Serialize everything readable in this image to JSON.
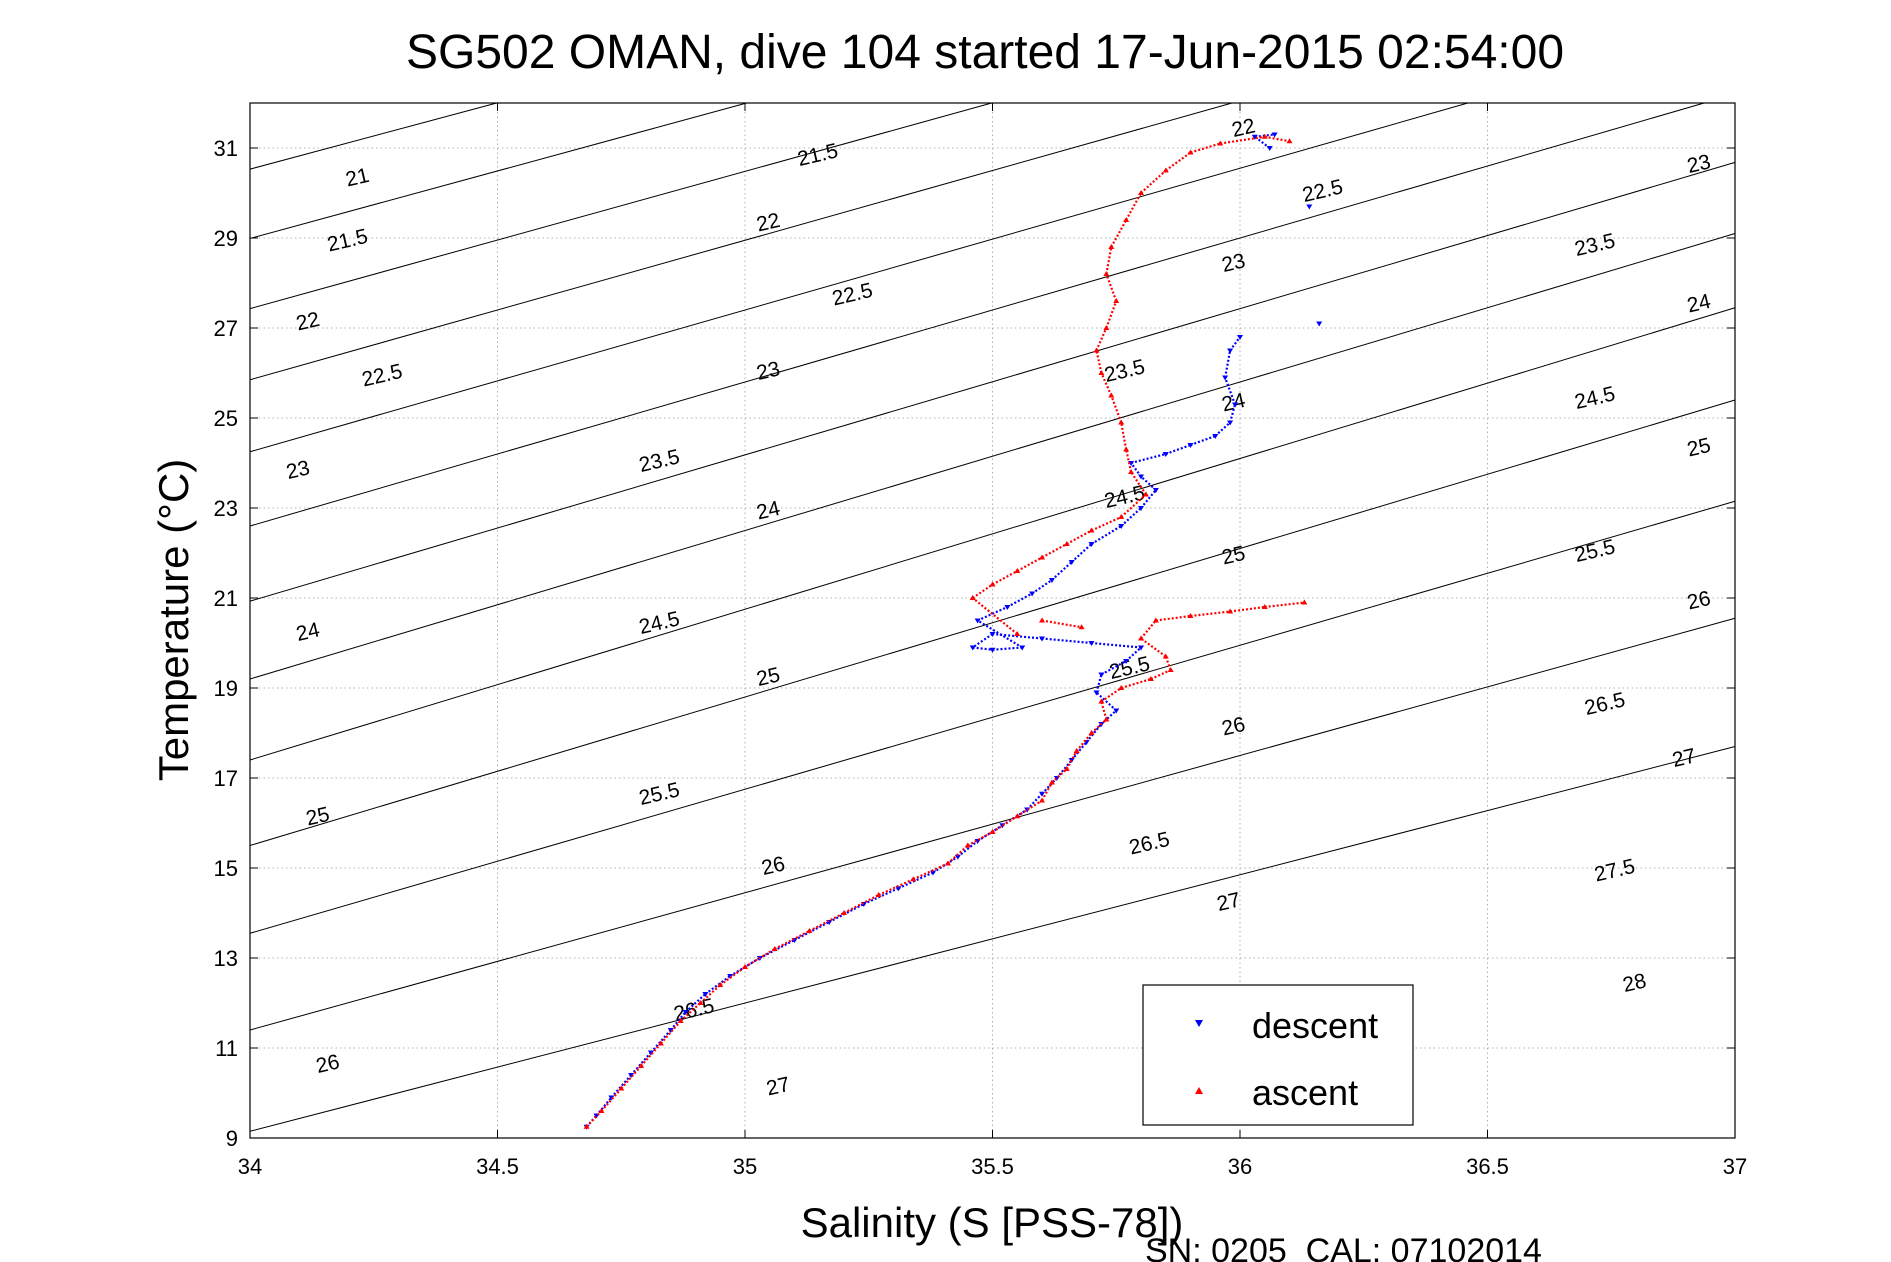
{
  "chart_data": {
    "type": "scatter",
    "title": "SG502 OMAN, dive 104 started 17-Jun-2015 02:54:00",
    "xlabel": "Salinity (S [PSS-78])",
    "ylabel": "Temperature (°C)",
    "xlim": [
      34,
      37
    ],
    "ylim": [
      9,
      32
    ],
    "xticks": [
      "34",
      "34.5",
      "35",
      "35.5",
      "36",
      "36.5",
      "37"
    ],
    "yticks": [
      "9",
      "11",
      "13",
      "15",
      "17",
      "19",
      "21",
      "23",
      "25",
      "27",
      "29",
      "31"
    ],
    "grid": true,
    "legend_position": "bottom-right",
    "footer": "SN: 0205  CAL: 07102014",
    "density_contours": [
      {
        "level": "21",
        "t_at_s34": 33.56,
        "slope": 2.85
      },
      {
        "level": "21.5",
        "t_at_s34": 32.05,
        "slope": 2.9
      },
      {
        "level": "22",
        "t_at_s34": 30.53,
        "slope": 2.95
      },
      {
        "level": "22.5",
        "t_at_s34": 28.99,
        "slope": 3.0
      },
      {
        "level": "23",
        "t_at_s34": 27.43,
        "slope": 3.05
      },
      {
        "level": "23.5",
        "t_at_s34": 25.85,
        "slope": 3.1
      },
      {
        "level": "24",
        "t_at_s34": 24.25,
        "slope": 3.15
      },
      {
        "level": "24.5",
        "t_at_s34": 22.6,
        "slope": 3.2
      },
      {
        "level": "25",
        "t_at_s34": 20.93,
        "slope": 3.25
      },
      {
        "level": "25.5",
        "t_at_s34": 19.2,
        "slope": 3.3
      },
      {
        "level": "26",
        "t_at_s34": 17.4,
        "slope": 3.35
      },
      {
        "level": "26.5",
        "t_at_s34": 15.5,
        "slope": 3.3
      },
      {
        "level": "27",
        "t_at_s34": 13.55,
        "slope": 3.2
      },
      {
        "level": "27.5",
        "t_at_s34": 11.4,
        "slope": 3.05
      },
      {
        "level": "28",
        "t_at_s34": 9.15,
        "slope": 2.85
      }
    ],
    "contour_labels": [
      {
        "text": "21",
        "s": 34.22,
        "t": 30.2
      },
      {
        "text": "21.5",
        "s": 34.2,
        "t": 28.8
      },
      {
        "text": "22",
        "s": 34.12,
        "t": 27.0
      },
      {
        "text": "22.5",
        "s": 34.27,
        "t": 25.8
      },
      {
        "text": "23",
        "s": 34.1,
        "t": 23.7
      },
      {
        "text": "24",
        "s": 34.12,
        "t": 20.1
      },
      {
        "text": "25",
        "s": 34.14,
        "t": 16.0
      },
      {
        "text": "26",
        "s": 34.16,
        "t": 10.5
      },
      {
        "text": "21.5",
        "s": 35.15,
        "t": 30.7
      },
      {
        "text": "22",
        "s": 35.05,
        "t": 29.2
      },
      {
        "text": "22.5",
        "s": 35.22,
        "t": 27.6
      },
      {
        "text": "23",
        "s": 35.05,
        "t": 25.9
      },
      {
        "text": "23.5",
        "s": 34.83,
        "t": 23.9
      },
      {
        "text": "24",
        "s": 35.05,
        "t": 22.8
      },
      {
        "text": "24.5",
        "s": 34.83,
        "t": 20.3
      },
      {
        "text": "25",
        "s": 35.05,
        "t": 19.1
      },
      {
        "text": "25.5",
        "s": 34.83,
        "t": 16.5
      },
      {
        "text": "26",
        "s": 35.06,
        "t": 14.9
      },
      {
        "text": "26.5",
        "s": 34.9,
        "t": 11.7
      },
      {
        "text": "27",
        "s": 35.07,
        "t": 10.0
      },
      {
        "text": "22",
        "s": 36.01,
        "t": 31.3
      },
      {
        "text": "22.5",
        "s": 36.17,
        "t": 29.9
      },
      {
        "text": "23",
        "s": 35.99,
        "t": 28.3
      },
      {
        "text": "23.5",
        "s": 35.77,
        "t": 25.9
      },
      {
        "text": "24",
        "s": 35.99,
        "t": 25.2
      },
      {
        "text": "24.5",
        "s": 35.77,
        "t": 23.1
      },
      {
        "text": "25",
        "s": 35.99,
        "t": 21.8
      },
      {
        "text": "25.5",
        "s": 35.78,
        "t": 19.3
      },
      {
        "text": "26",
        "s": 35.99,
        "t": 18.0
      },
      {
        "text": "26.5",
        "s": 35.82,
        "t": 15.4
      },
      {
        "text": "27",
        "s": 35.98,
        "t": 14.1
      },
      {
        "text": "23",
        "s": 36.93,
        "t": 30.5
      },
      {
        "text": "23.5",
        "s": 36.72,
        "t": 28.7
      },
      {
        "text": "24",
        "s": 36.93,
        "t": 27.4
      },
      {
        "text": "24.5",
        "s": 36.72,
        "t": 25.3
      },
      {
        "text": "25",
        "s": 36.93,
        "t": 24.2
      },
      {
        "text": "25.5",
        "s": 36.72,
        "t": 21.9
      },
      {
        "text": "26",
        "s": 36.93,
        "t": 20.8
      },
      {
        "text": "26.5",
        "s": 36.74,
        "t": 18.5
      },
      {
        "text": "27",
        "s": 36.9,
        "t": 17.3
      },
      {
        "text": "27.5",
        "s": 36.76,
        "t": 14.8
      },
      {
        "text": "28",
        "s": 36.8,
        "t": 12.3
      }
    ],
    "series": [
      {
        "name": "descent",
        "color": "#0000ff",
        "marker": "triangle-down",
        "points": [
          [
            34.68,
            9.25
          ],
          [
            34.7,
            9.5
          ],
          [
            34.73,
            9.9
          ],
          [
            34.77,
            10.4
          ],
          [
            34.81,
            10.9
          ],
          [
            34.85,
            11.4
          ],
          [
            34.88,
            11.8
          ],
          [
            34.92,
            12.2
          ],
          [
            34.97,
            12.6
          ],
          [
            35.03,
            13.0
          ],
          [
            35.1,
            13.4
          ],
          [
            35.17,
            13.8
          ],
          [
            35.24,
            14.2
          ],
          [
            35.31,
            14.55
          ],
          [
            35.38,
            14.9
          ],
          [
            35.43,
            15.25
          ],
          [
            35.47,
            15.6
          ],
          [
            35.52,
            15.95
          ],
          [
            35.57,
            16.3
          ],
          [
            35.6,
            16.65
          ],
          [
            35.63,
            17.0
          ],
          [
            35.66,
            17.4
          ],
          [
            35.69,
            17.8
          ],
          [
            35.72,
            18.2
          ],
          [
            35.75,
            18.5
          ],
          [
            35.71,
            18.9
          ],
          [
            35.72,
            19.3
          ],
          [
            35.77,
            19.6
          ],
          [
            35.8,
            19.9
          ],
          [
            35.7,
            20.0
          ],
          [
            35.6,
            20.1
          ],
          [
            35.5,
            20.2
          ],
          [
            35.46,
            19.9
          ],
          [
            35.5,
            19.85
          ],
          [
            35.56,
            19.9
          ],
          [
            35.47,
            20.5
          ],
          [
            35.53,
            20.8
          ],
          [
            35.58,
            21.1
          ],
          [
            35.62,
            21.4
          ],
          [
            35.66,
            21.8
          ],
          [
            35.7,
            22.2
          ],
          [
            35.76,
            22.6
          ],
          [
            35.8,
            23.0
          ],
          [
            35.83,
            23.4
          ],
          [
            35.8,
            23.7
          ],
          [
            35.78,
            24.0
          ],
          [
            35.85,
            24.2
          ],
          [
            35.9,
            24.4
          ],
          [
            35.95,
            24.6
          ],
          [
            35.98,
            24.9
          ],
          [
            35.99,
            25.3
          ],
          [
            35.97,
            25.9
          ],
          [
            35.98,
            26.5
          ],
          [
            36.0,
            26.8
          ],
          [
            36.16,
            27.1
          ],
          [
            36.14,
            29.7
          ],
          [
            36.06,
            31.0
          ],
          [
            36.03,
            31.25
          ],
          [
            36.07,
            31.3
          ]
        ]
      },
      {
        "name": "ascent",
        "color": "#ff0000",
        "marker": "triangle-up",
        "points": [
          [
            34.68,
            9.25
          ],
          [
            34.71,
            9.6
          ],
          [
            34.75,
            10.1
          ],
          [
            34.79,
            10.6
          ],
          [
            34.83,
            11.1
          ],
          [
            34.87,
            11.6
          ],
          [
            34.91,
            12.0
          ],
          [
            34.95,
            12.4
          ],
          [
            35.0,
            12.8
          ],
          [
            35.06,
            13.2
          ],
          [
            35.13,
            13.6
          ],
          [
            35.2,
            14.0
          ],
          [
            35.27,
            14.4
          ],
          [
            35.34,
            14.75
          ],
          [
            35.41,
            15.1
          ],
          [
            35.45,
            15.5
          ],
          [
            35.5,
            15.8
          ],
          [
            35.55,
            16.15
          ],
          [
            35.6,
            16.5
          ],
          [
            35.62,
            16.9
          ],
          [
            35.65,
            17.2
          ],
          [
            35.67,
            17.6
          ],
          [
            35.7,
            18.0
          ],
          [
            35.73,
            18.3
          ],
          [
            35.72,
            18.7
          ],
          [
            35.76,
            19.0
          ],
          [
            35.82,
            19.2
          ],
          [
            35.86,
            19.4
          ],
          [
            35.85,
            19.7
          ],
          [
            35.8,
            20.1
          ],
          [
            35.83,
            20.5
          ],
          [
            35.9,
            20.6
          ],
          [
            35.98,
            20.7
          ],
          [
            36.05,
            20.8
          ],
          [
            36.13,
            20.9
          ],
          [
            35.6,
            20.5
          ],
          [
            35.68,
            20.35
          ],
          [
            35.55,
            20.2
          ],
          [
            35.46,
            21.0
          ],
          [
            35.5,
            21.3
          ],
          [
            35.55,
            21.6
          ],
          [
            35.6,
            21.9
          ],
          [
            35.65,
            22.2
          ],
          [
            35.7,
            22.5
          ],
          [
            35.76,
            22.8
          ],
          [
            35.81,
            23.3
          ],
          [
            35.78,
            23.8
          ],
          [
            35.77,
            24.3
          ],
          [
            35.76,
            24.9
          ],
          [
            35.74,
            25.5
          ],
          [
            35.72,
            26.0
          ],
          [
            35.71,
            26.5
          ],
          [
            35.73,
            27.0
          ],
          [
            35.75,
            27.6
          ],
          [
            35.73,
            28.2
          ],
          [
            35.74,
            28.8
          ],
          [
            35.77,
            29.4
          ],
          [
            35.8,
            30.0
          ],
          [
            35.85,
            30.5
          ],
          [
            35.9,
            30.9
          ],
          [
            35.96,
            31.1
          ],
          [
            36.05,
            31.25
          ],
          [
            36.1,
            31.15
          ]
        ]
      }
    ]
  }
}
